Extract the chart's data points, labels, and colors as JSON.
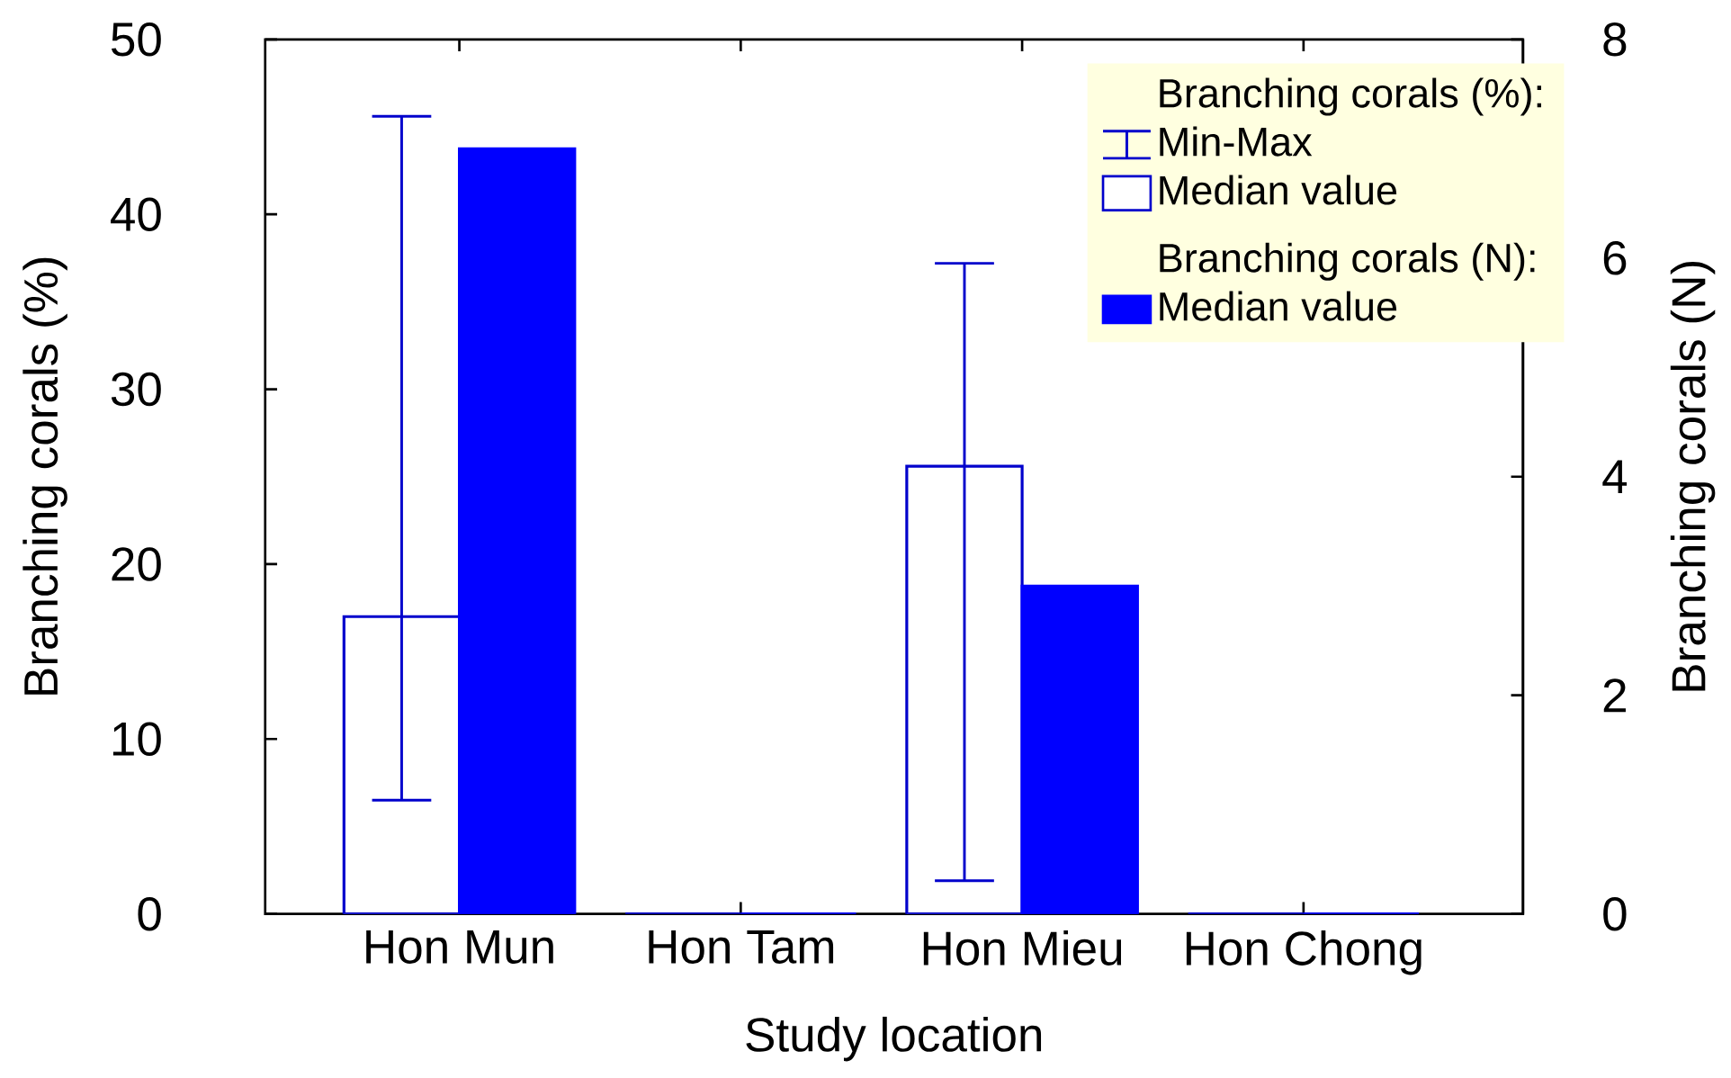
{
  "chart_data": {
    "type": "bar",
    "xlabel": "Study location",
    "ylabel": "Branching corals (%)",
    "y2label": "Branching corals (N)",
    "categories": [
      "Hon Mun",
      "Hon Tam",
      "Hon Mieu",
      "Hon Chong"
    ],
    "series": [
      {
        "name": "Median value",
        "color": "#ffffff",
        "values": [
          17.0,
          0,
          25.6,
          0
        ],
        "errors": [
          [
            6.5,
            45.6
          ],
          null,
          [
            1.9,
            37.2
          ],
          null
        ]
      },
      {
        "name": "Median value",
        "color": "#0000ff",
        "values": [
          7,
          0,
          3,
          0
        ],
        "axis": "y2"
      }
    ],
    "ylim": [
      0,
      50
    ],
    "yticks": [
      0,
      10,
      20,
      30,
      40,
      50
    ],
    "y2lim": [
      0,
      8
    ],
    "y2ticks": [
      0,
      2,
      4,
      6,
      8
    ],
    "legend": "top right",
    "annotations": [
      "Branching corals (%):",
      "Min-Max",
      "Branching corals (N):"
    ]
  }
}
